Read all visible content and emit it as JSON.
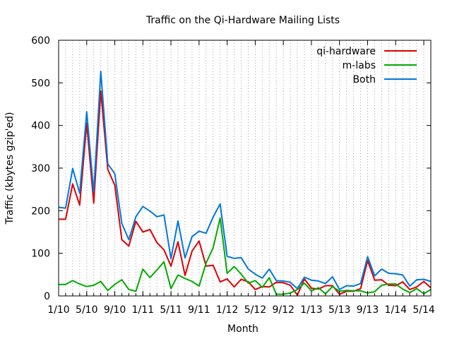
{
  "chart_data": {
    "type": "line",
    "title": "Traffic on the Qi-Hardware Mailing Lists",
    "xlabel": "Month",
    "ylabel": "Traffic (kbytes gzip'ed)",
    "ylim": [
      0,
      600
    ],
    "yticks": [
      0,
      100,
      200,
      300,
      400,
      500,
      600
    ],
    "x_start": "1/10",
    "x_months": 53,
    "xticks": [
      {
        "m": 0,
        "label": "1/10"
      },
      {
        "m": 4,
        "label": "5/10"
      },
      {
        "m": 8,
        "label": "9/10"
      },
      {
        "m": 12,
        "label": "1/11"
      },
      {
        "m": 16,
        "label": "5/11"
      },
      {
        "m": 20,
        "label": "9/11"
      },
      {
        "m": 24,
        "label": "1/12"
      },
      {
        "m": 28,
        "label": "5/12"
      },
      {
        "m": 32,
        "label": "9/12"
      },
      {
        "m": 36,
        "label": "1/13"
      },
      {
        "m": 40,
        "label": "5/13"
      },
      {
        "m": 44,
        "label": "9/13"
      },
      {
        "m": 48,
        "label": "1/14"
      },
      {
        "m": 52,
        "label": "5/14"
      }
    ],
    "grid": "vertical-dotted",
    "legend_position": "top-right",
    "series": [
      {
        "name": "qi-hardware",
        "color": "#dd0000",
        "points": [
          [
            0,
            180
          ],
          [
            1,
            180
          ],
          [
            2,
            263
          ],
          [
            3,
            213
          ],
          [
            4,
            405
          ],
          [
            5,
            218
          ],
          [
            6,
            481
          ],
          [
            7,
            297
          ],
          [
            8,
            260
          ],
          [
            9,
            132
          ],
          [
            10,
            117
          ],
          [
            11,
            175
          ],
          [
            12,
            150
          ],
          [
            13,
            156
          ],
          [
            14,
            125
          ],
          [
            15,
            108
          ],
          [
            16,
            70
          ],
          [
            17,
            127
          ],
          [
            18,
            48
          ],
          [
            19,
            105
          ],
          [
            20,
            129
          ],
          [
            21,
            70
          ],
          [
            22,
            72
          ],
          [
            23,
            33
          ],
          [
            24,
            40
          ],
          [
            25,
            21
          ],
          [
            26,
            39
          ],
          [
            27,
            33
          ],
          [
            28,
            15
          ],
          [
            29,
            22
          ],
          [
            30,
            21
          ],
          [
            31,
            32
          ],
          [
            32,
            31
          ],
          [
            33,
            25
          ],
          [
            34,
            2
          ],
          [
            35,
            40
          ],
          [
            36,
            18
          ],
          [
            37,
            16
          ],
          [
            38,
            24
          ],
          [
            39,
            24
          ],
          [
            40,
            4
          ],
          [
            41,
            11
          ],
          [
            42,
            11
          ],
          [
            43,
            17
          ],
          [
            44,
            83
          ],
          [
            45,
            37
          ],
          [
            46,
            38
          ],
          [
            47,
            25
          ],
          [
            48,
            24
          ],
          [
            49,
            33
          ],
          [
            50,
            15
          ],
          [
            51,
            21
          ],
          [
            52,
            34
          ],
          [
            53,
            19
          ]
        ]
      },
      {
        "name": "m-labs",
        "color": "#00aa00",
        "points": [
          [
            0,
            27
          ],
          [
            1,
            27
          ],
          [
            2,
            36
          ],
          [
            3,
            28
          ],
          [
            4,
            22
          ],
          [
            5,
            25
          ],
          [
            6,
            34
          ],
          [
            7,
            13
          ],
          [
            8,
            27
          ],
          [
            9,
            38
          ],
          [
            10,
            15
          ],
          [
            11,
            11
          ],
          [
            12,
            63
          ],
          [
            13,
            43
          ],
          [
            14,
            61
          ],
          [
            15,
            80
          ],
          [
            16,
            17
          ],
          [
            17,
            49
          ],
          [
            18,
            41
          ],
          [
            19,
            34
          ],
          [
            20,
            23
          ],
          [
            21,
            77
          ],
          [
            22,
            113
          ],
          [
            23,
            183
          ],
          [
            24,
            53
          ],
          [
            25,
            69
          ],
          [
            26,
            51
          ],
          [
            27,
            30
          ],
          [
            28,
            36
          ],
          [
            29,
            20
          ],
          [
            30,
            43
          ],
          [
            31,
            4
          ],
          [
            32,
            4
          ],
          [
            33,
            7
          ],
          [
            34,
            15
          ],
          [
            35,
            30
          ],
          [
            36,
            12
          ],
          [
            37,
            19
          ],
          [
            38,
            5
          ],
          [
            39,
            22
          ],
          [
            40,
            11
          ],
          [
            41,
            13
          ],
          [
            42,
            12
          ],
          [
            43,
            12
          ],
          [
            44,
            7
          ],
          [
            45,
            10
          ],
          [
            46,
            25
          ],
          [
            47,
            28
          ],
          [
            48,
            28
          ],
          [
            49,
            16
          ],
          [
            50,
            8
          ],
          [
            51,
            17
          ],
          [
            52,
            5
          ],
          [
            53,
            15
          ]
        ]
      },
      {
        "name": "Both",
        "color": "#0077dd",
        "points": [
          [
            0,
            208
          ],
          [
            1,
            206
          ],
          [
            2,
            299
          ],
          [
            3,
            241
          ],
          [
            4,
            432
          ],
          [
            5,
            243
          ],
          [
            6,
            527
          ],
          [
            7,
            310
          ],
          [
            8,
            287
          ],
          [
            9,
            170
          ],
          [
            10,
            132
          ],
          [
            11,
            186
          ],
          [
            12,
            210
          ],
          [
            13,
            199
          ],
          [
            14,
            186
          ],
          [
            15,
            190
          ],
          [
            16,
            87
          ],
          [
            17,
            176
          ],
          [
            18,
            89
          ],
          [
            19,
            139
          ],
          [
            20,
            152
          ],
          [
            21,
            147
          ],
          [
            22,
            185
          ],
          [
            23,
            216
          ],
          [
            24,
            93
          ],
          [
            25,
            88
          ],
          [
            26,
            90
          ],
          [
            27,
            63
          ],
          [
            28,
            51
          ],
          [
            29,
            42
          ],
          [
            30,
            63
          ],
          [
            31,
            36
          ],
          [
            32,
            35
          ],
          [
            33,
            32
          ],
          [
            34,
            17
          ],
          [
            35,
            44
          ],
          [
            36,
            37
          ],
          [
            37,
            35
          ],
          [
            38,
            29
          ],
          [
            39,
            45
          ],
          [
            40,
            15
          ],
          [
            41,
            24
          ],
          [
            42,
            23
          ],
          [
            43,
            29
          ],
          [
            44,
            92
          ],
          [
            45,
            47
          ],
          [
            46,
            63
          ],
          [
            47,
            53
          ],
          [
            48,
            52
          ],
          [
            49,
            49
          ],
          [
            50,
            23
          ],
          [
            51,
            38
          ],
          [
            52,
            39
          ],
          [
            53,
            34
          ]
        ]
      }
    ]
  }
}
